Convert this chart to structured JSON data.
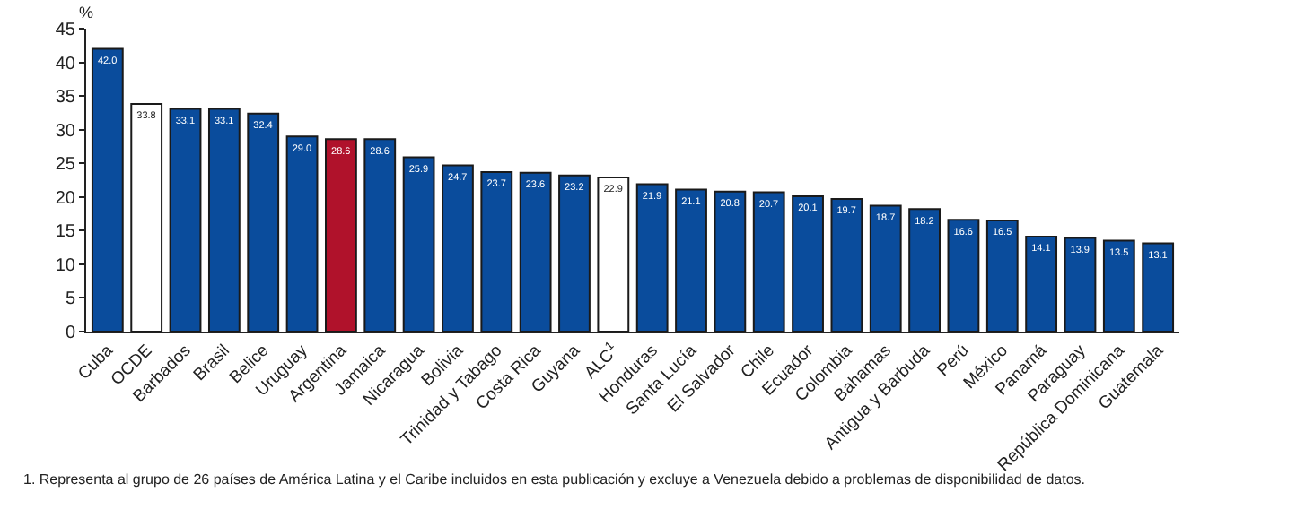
{
  "chart_data": {
    "type": "bar",
    "ylabel": "%",
    "categories": [
      "Cuba",
      "OCDE",
      "Barbados",
      "Brasil",
      "Belice",
      "Uruguay",
      "Argentina",
      "Jamaica",
      "Nicaragua",
      "Bolivia",
      "Trinidad y Tabago",
      "Costa Rica",
      "Guyana",
      "ALC$^{1}$",
      "Honduras",
      "Santa Lucía",
      "El Salvador",
      "Chile",
      "Ecuador",
      "Colombia",
      "Bahamas",
      "Antigua y Barbuda",
      "Perú",
      "México",
      "Panamá",
      "Paraguay",
      "República Dominicana",
      "Guatemala"
    ],
    "values": [
      42.0,
      33.8,
      33.1,
      33.1,
      32.4,
      29.0,
      28.6,
      28.6,
      25.9,
      24.7,
      23.7,
      23.6,
      23.2,
      22.9,
      21.9,
      21.1,
      20.8,
      20.7,
      20.1,
      19.7,
      18.7,
      18.2,
      16.6,
      16.5,
      14.1,
      13.9,
      13.5,
      13.1
    ],
    "value_labels": [
      "42.0",
      "33.8",
      "33.1",
      "33.1",
      "32.4",
      "29.0",
      "28.6",
      "28.6",
      "25.9",
      "24.7",
      "23.7",
      "23.6",
      "23.2",
      "22.9",
      "21.9",
      "21.1",
      "20.8",
      "20.7",
      "20.1",
      "19.7",
      "18.7",
      "18.2",
      "16.6",
      "16.5",
      "14.1",
      "13.9",
      "13.5",
      "13.1"
    ],
    "colors": [
      "#0a4c9c",
      "#ffffff",
      "#0a4c9c",
      "#0a4c9c",
      "#0a4c9c",
      "#0a4c9c",
      "#b0122b",
      "#0a4c9c",
      "#0a4c9c",
      "#0a4c9c",
      "#0a4c9c",
      "#0a4c9c",
      "#0a4c9c",
      "#ffffff",
      "#0a4c9c",
      "#0a4c9c",
      "#0a4c9c",
      "#0a4c9c",
      "#0a4c9c",
      "#0a4c9c",
      "#0a4c9c",
      "#0a4c9c",
      "#0a4c9c",
      "#0a4c9c",
      "#0a4c9c",
      "#0a4c9c",
      "#0a4c9c",
      "#0a4c9c"
    ],
    "ylim": [
      0,
      45
    ],
    "yticks": [
      0,
      5,
      10,
      15,
      20,
      25,
      30,
      35,
      40,
      45
    ],
    "grid": false,
    "annotations": [
      "1. Representa al grupo de 26 países de América Latina y el Caribe incluidos en esta publicación y excluye a Venezuela debido a problemas de disponibilidad de datos."
    ]
  }
}
